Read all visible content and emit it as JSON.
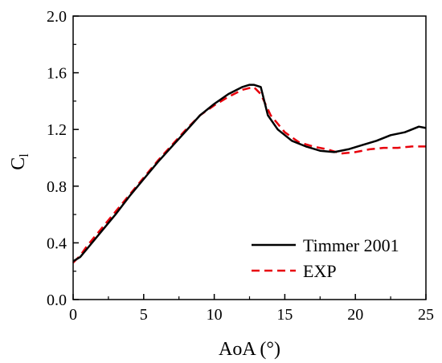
{
  "chart_data": {
    "type": "line",
    "title": "",
    "xlabel": "AoA (°)",
    "ylabel": "C",
    "ylabel_subscript": "l",
    "xlim": [
      0,
      25
    ],
    "ylim": [
      0.0,
      2.0
    ],
    "xticks": [
      0,
      5,
      10,
      15,
      20,
      25
    ],
    "xtick_labels": [
      "0",
      "5",
      "10",
      "15",
      "20",
      "25"
    ],
    "yticks": [
      0.0,
      0.4,
      0.8,
      1.2,
      1.6,
      2.0
    ],
    "ytick_labels": [
      "0.0",
      "0.4",
      "0.8",
      "1.2",
      "1.6",
      "2.0"
    ],
    "grid": false,
    "legend_position": "bottom-right",
    "series": [
      {
        "name": "Timmer 2001",
        "color": "#000000",
        "style": "solid",
        "x": [
          0,
          0.5,
          1,
          2,
          3,
          4,
          5,
          6,
          7,
          8,
          9,
          10,
          11,
          12,
          12.5,
          12.8,
          13.3,
          13.8,
          14.5,
          15.5,
          16.5,
          17.5,
          18.5,
          19.5,
          20.5,
          21.5,
          22.5,
          23.5,
          24.5,
          25
        ],
        "y": [
          0.27,
          0.3,
          0.36,
          0.48,
          0.6,
          0.73,
          0.85,
          0.97,
          1.08,
          1.19,
          1.3,
          1.38,
          1.45,
          1.5,
          1.515,
          1.515,
          1.5,
          1.3,
          1.2,
          1.12,
          1.08,
          1.05,
          1.04,
          1.06,
          1.09,
          1.12,
          1.16,
          1.18,
          1.22,
          1.21
        ]
      },
      {
        "name": "EXP",
        "color": "#e8000b",
        "style": "dashed",
        "x": [
          0,
          0.5,
          1,
          2,
          3,
          4,
          5,
          6,
          7,
          8,
          9,
          10,
          11,
          12,
          12.8,
          13.3,
          14,
          15,
          16,
          17,
          18,
          19,
          20,
          21,
          22,
          23,
          24,
          25
        ],
        "y": [
          0.26,
          0.31,
          0.38,
          0.5,
          0.62,
          0.74,
          0.86,
          0.98,
          1.09,
          1.2,
          1.3,
          1.37,
          1.43,
          1.48,
          1.5,
          1.45,
          1.3,
          1.18,
          1.11,
          1.08,
          1.06,
          1.03,
          1.04,
          1.06,
          1.07,
          1.07,
          1.08,
          1.08
        ]
      }
    ]
  }
}
